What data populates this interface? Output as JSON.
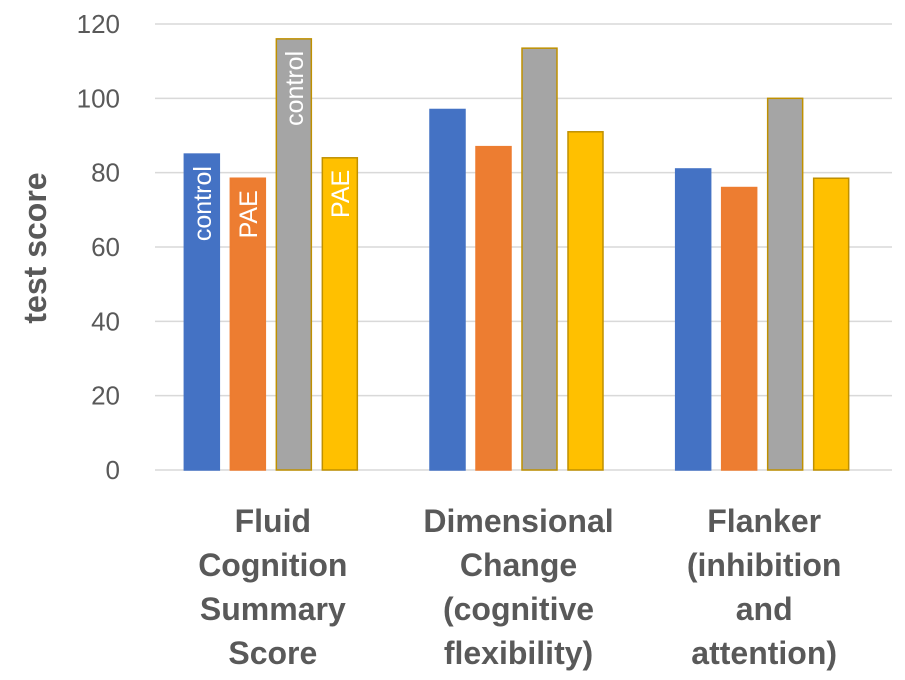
{
  "chart_data": {
    "type": "bar",
    "ylabel": "test score",
    "xlabel": "",
    "ylim": [
      0,
      120
    ],
    "yticks": [
      0,
      20,
      40,
      60,
      80,
      100,
      120
    ],
    "grid": true,
    "categories": [
      [
        "Fluid",
        "Cognition",
        "Summary",
        "Score"
      ],
      [
        "Dimensional",
        "Change",
        "(cognitive",
        "flexibility)"
      ],
      [
        "Flanker",
        "(inhibition",
        "and",
        "attention)"
      ]
    ],
    "series": [
      {
        "name": "control",
        "color": "#4472C4",
        "outline": "#4472C4",
        "values": [
          85,
          97,
          81
        ]
      },
      {
        "name": "PAE",
        "color": "#ED7D31",
        "outline": "#ED7D31",
        "values": [
          78.5,
          87,
          76
        ]
      },
      {
        "name": "control",
        "color": "#A5A5A5",
        "outline": "#BF9000",
        "values": [
          116,
          113.5,
          100
        ]
      },
      {
        "name": "PAE",
        "color": "#FFC000",
        "outline": "#BF9000",
        "values": [
          84,
          91,
          78.5
        ]
      }
    ]
  }
}
